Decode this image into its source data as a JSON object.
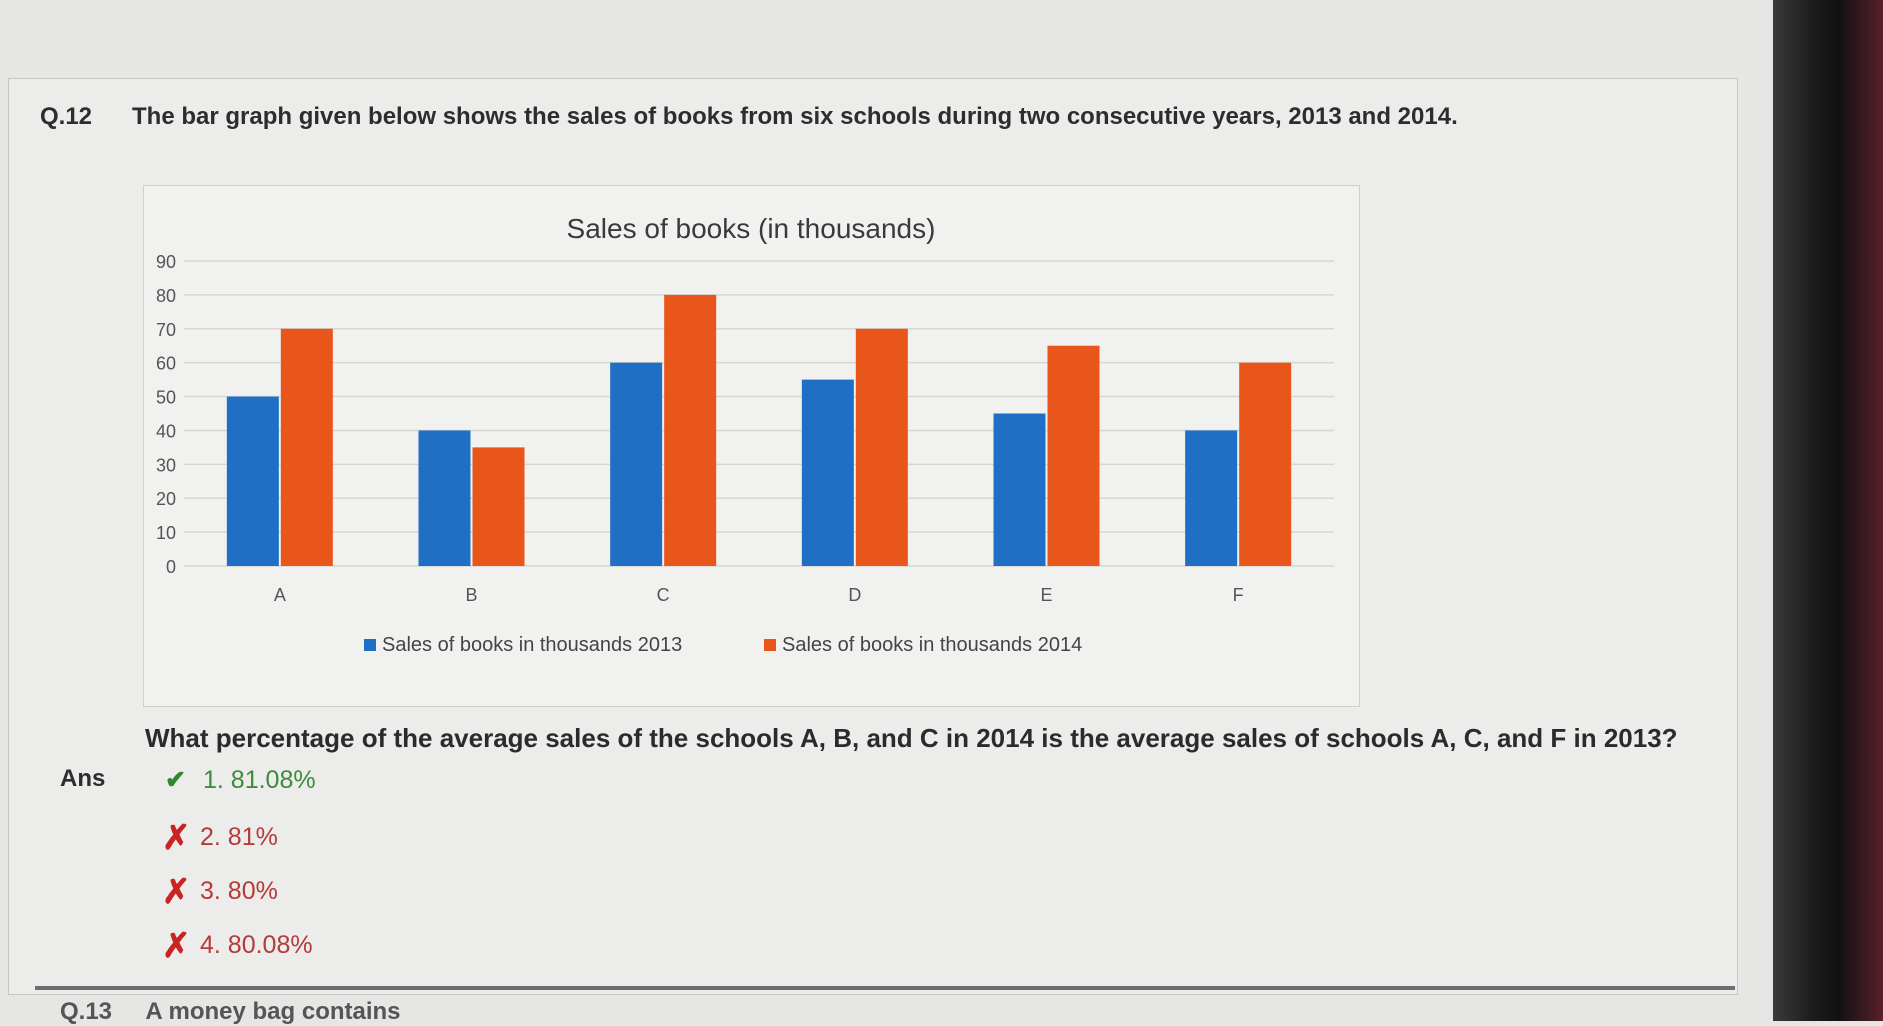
{
  "question": {
    "number": "Q.12",
    "text": "The bar graph given below shows the sales of books from six schools during two consecutive years, 2013 and 2014.",
    "prompt": "What percentage of the average sales of the schools A, B, and C in 2014 is the average sales of schools A, C, and F in 2013?"
  },
  "answer": {
    "label": "Ans",
    "options": [
      {
        "text": "1. 81.08%",
        "status": "correct",
        "icon": "check-icon"
      },
      {
        "text": "2. 81%",
        "status": "wrong",
        "icon": "cross-icon"
      },
      {
        "text": "3. 80%",
        "status": "wrong",
        "icon": "cross-icon"
      },
      {
        "text": "4. 80.08%",
        "status": "wrong",
        "icon": "cross-icon"
      }
    ]
  },
  "next_question": {
    "number": "Q.13",
    "text_fragment": "A money bag contains"
  },
  "colors": {
    "series_2013": "#1f6fc4",
    "series_2014": "#e8561b",
    "correct": "#2f8a2f",
    "wrong": "#c92424"
  },
  "chart_data": {
    "type": "bar",
    "title": "Sales of books (in thousands)",
    "categories": [
      "A",
      "B",
      "C",
      "D",
      "E",
      "F"
    ],
    "series": [
      {
        "name": "Sales of books in thousands 2013",
        "values": [
          50,
          40,
          60,
          55,
          45,
          40
        ]
      },
      {
        "name": "Sales of books in thousands 2014",
        "values": [
          70,
          35,
          80,
          70,
          65,
          60
        ]
      }
    ],
    "yticks": [
      "0",
      "10",
      "20",
      "30",
      "40",
      "50",
      "60",
      "70",
      "80",
      "90"
    ],
    "ylim": [
      0,
      90
    ],
    "grid": true,
    "legend_position": "bottom"
  }
}
